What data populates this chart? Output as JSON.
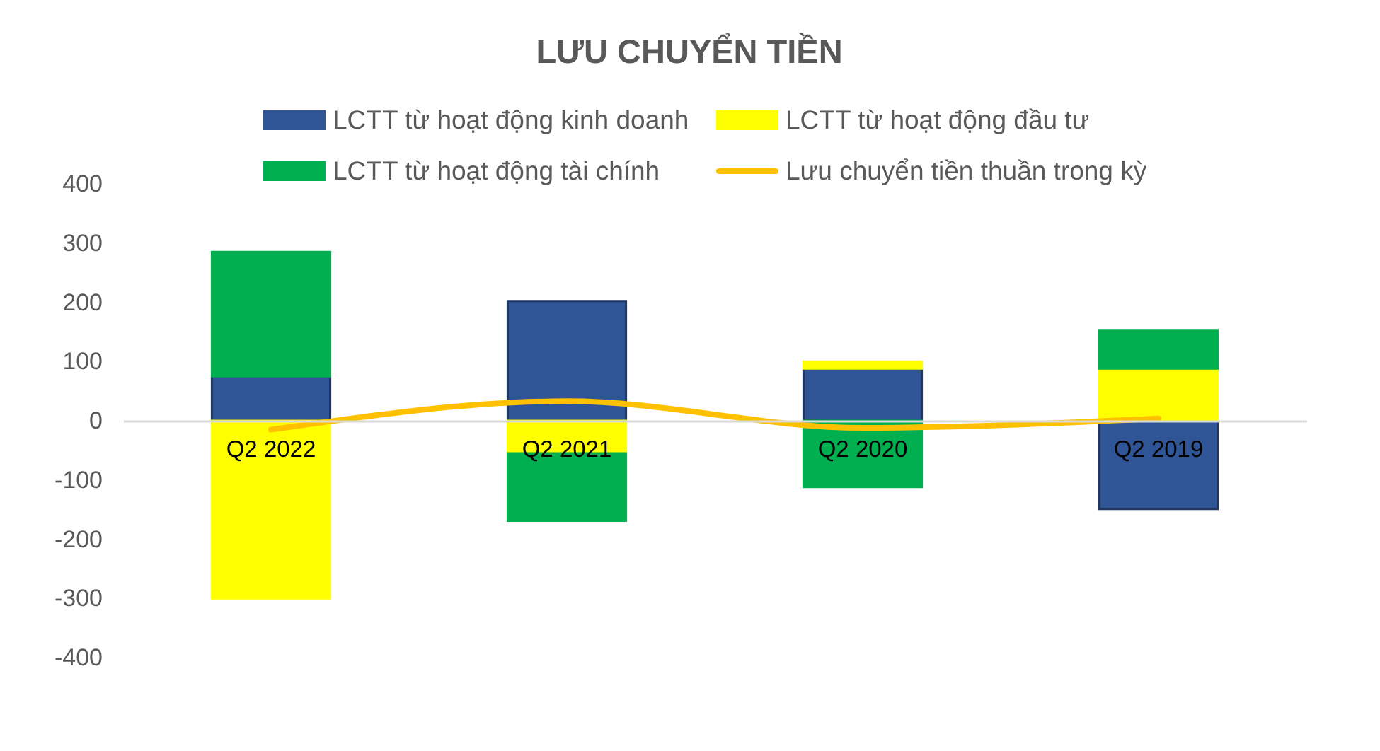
{
  "chart_data": {
    "type": "bar",
    "title": "LƯU CHUYỂN TIỀN",
    "stacked": true,
    "legend": "top",
    "categories": [
      "Q2 2022",
      "Q2 2021",
      "Q2 2020",
      "Q2 2019"
    ],
    "series": [
      {
        "name": "LCTT từ hoạt động kinh doanh",
        "color": "#2f5597",
        "values": [
          75,
          202,
          88,
          -149
        ]
      },
      {
        "name": "LCTT từ hoạt động đầu tư",
        "color": "#ffff00",
        "values": [
          -300,
          -55,
          12,
          88
        ]
      },
      {
        "name": "LCTT từ hoạt động tài chính",
        "color": "#00b050",
        "values": [
          210,
          -114,
          -112,
          65
        ]
      },
      {
        "name": "Lưu chuyển tiền thuần trong kỳ",
        "type": "line",
        "color": "#ffc000",
        "values": [
          -15,
          33,
          -12,
          4
        ]
      }
    ],
    "ylim": [
      -400,
      400
    ],
    "yticks": [
      -400,
      -300,
      -200,
      -100,
      0,
      100,
      200,
      300,
      400
    ]
  }
}
